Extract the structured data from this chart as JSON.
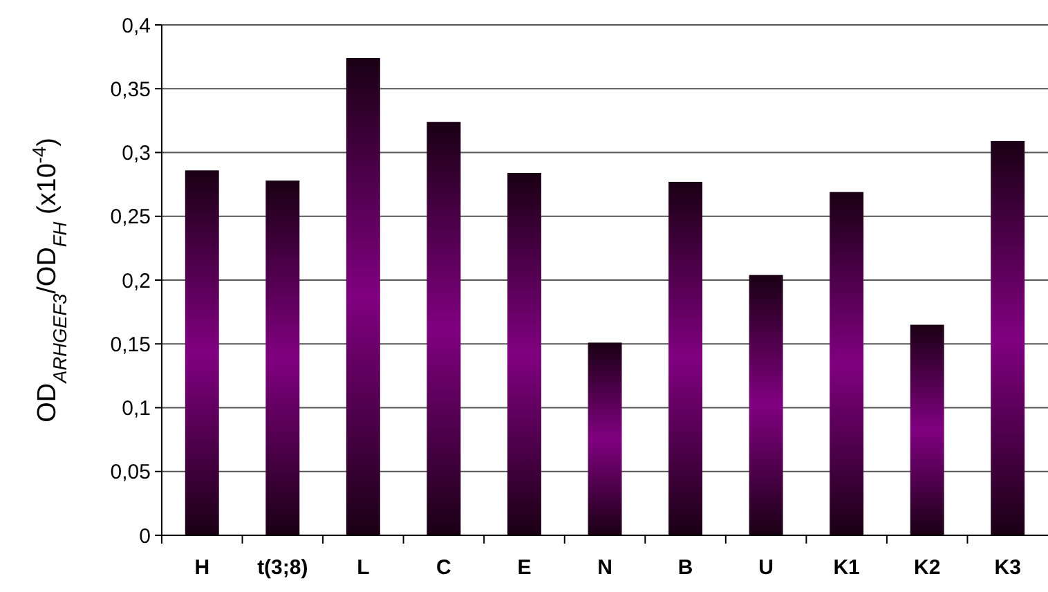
{
  "chart_data": {
    "type": "bar",
    "ylabel": "OD$_{ARHGEF3}$/OD$_{FH}$ (x10$^{-4}$)",
    "categories": [
      "H",
      "t(3;8)",
      "L",
      "C",
      "E",
      "N",
      "B",
      "U",
      "K1",
      "K2",
      "K3"
    ],
    "values": [
      0.286,
      0.278,
      0.374,
      0.324,
      0.284,
      0.151,
      0.277,
      0.204,
      0.269,
      0.165,
      0.309
    ],
    "color": "#800080",
    "ylim": [
      0,
      0.4
    ],
    "yticks": [
      0,
      {
        "value": 0.05,
        "label": "0,05"
      },
      {
        "value": 0.1,
        "label": "0,1"
      },
      {
        "value": 0.15,
        "label": "0,15"
      },
      {
        "value": 0.2,
        "label": "0,2"
      },
      {
        "value": 0.25,
        "label": "0,25"
      },
      {
        "value": 0.3,
        "label": "0,3"
      },
      {
        "value": 0.35,
        "label": "0,35"
      },
      {
        "value": 0.4,
        "label": "0,4"
      }
    ],
    "grid": "y"
  }
}
